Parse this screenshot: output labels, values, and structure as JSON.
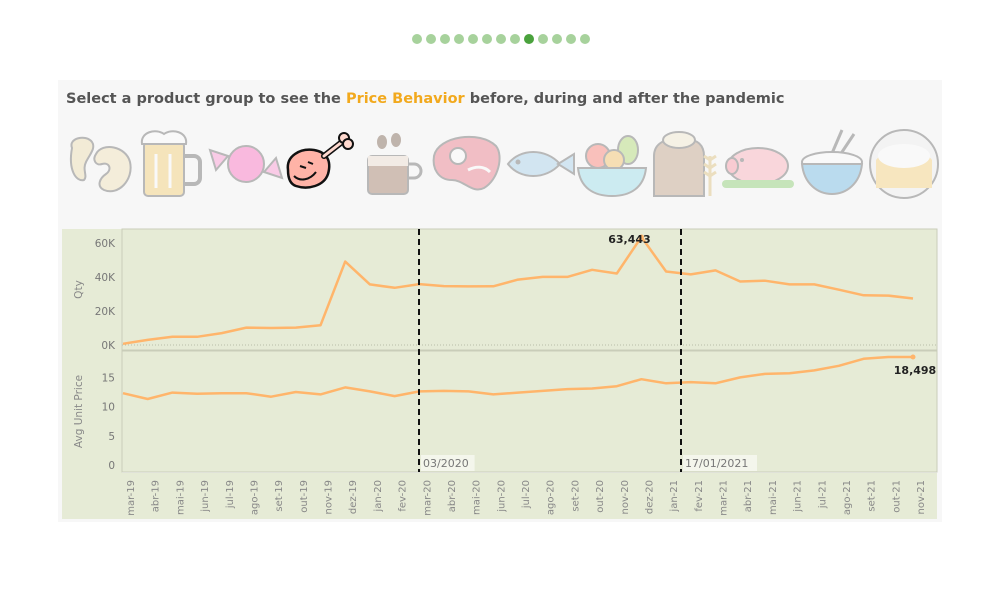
{
  "pager": {
    "count": 13,
    "active_index": 8
  },
  "header": {
    "prefix": "Select a product group to see the ",
    "highlight": "Price Behavior",
    "suffix": " before, during and after the pandemic"
  },
  "products": [
    {
      "name": "cashew-icon",
      "selected": false
    },
    {
      "name": "beer-mug-icon",
      "selected": false
    },
    {
      "name": "candy-icon",
      "selected": false
    },
    {
      "name": "chicken-leg-icon",
      "selected": true
    },
    {
      "name": "coffee-cup-icon",
      "selected": false
    },
    {
      "name": "steak-icon",
      "selected": false
    },
    {
      "name": "fish-icon",
      "selected": false
    },
    {
      "name": "fruit-bowl-icon",
      "selected": false
    },
    {
      "name": "grain-sack-icon",
      "selected": false
    },
    {
      "name": "roast-pig-icon",
      "selected": false
    },
    {
      "name": "rice-bowl-icon",
      "selected": false
    },
    {
      "name": "sugar-icon",
      "selected": false
    }
  ],
  "colors": {
    "line": "#ffb56b",
    "plot_bg": "#e6ebd6",
    "accent": "#f2a91d"
  },
  "chart_data": {
    "type": "line",
    "x": [
      "mar-19",
      "abr-19",
      "mai-19",
      "jun-19",
      "jul-19",
      "ago-19",
      "set-19",
      "out-19",
      "nov-19",
      "dez-19",
      "jan-20",
      "fev-20",
      "mar-20",
      "abr-20",
      "mai-20",
      "jun-20",
      "jul-20",
      "ago-20",
      "set-20",
      "out-20",
      "nov-20",
      "dez-20",
      "jan-21",
      "fev-21",
      "mar-21",
      "abr-21",
      "mai-21",
      "jun-21",
      "jul-21",
      "ago-21",
      "set-21",
      "out-21",
      "nov-21"
    ],
    "panels": [
      {
        "ylabel": "Qty",
        "yticks": [
          "0K",
          "20K",
          "40K",
          "60K"
        ],
        "ylim": [
          0,
          63443
        ],
        "values": [
          700,
          3000,
          4800,
          4800,
          7000,
          10200,
          10000,
          10200,
          11600,
          49000,
          35600,
          33600,
          35800,
          34600,
          34400,
          34500,
          38400,
          40000,
          40000,
          44200,
          42000,
          63443,
          43200,
          41500,
          43800,
          37300,
          37800,
          35600,
          35600,
          32500,
          29200,
          29000,
          27300
        ],
        "label": {
          "index": 21,
          "text": "63,443"
        }
      },
      {
        "ylabel": "Avg Unit Price",
        "yticks": [
          "0",
          "5",
          "10",
          "15"
        ],
        "ylim": [
          0,
          18.5
        ],
        "values": [
          12.3,
          11.3,
          12.4,
          12.2,
          12.3,
          12.3,
          11.7,
          12.5,
          12.1,
          13.3,
          12.6,
          11.8,
          12.6,
          12.7,
          12.6,
          12.1,
          12.4,
          12.7,
          13.0,
          13.1,
          13.5,
          14.7,
          14.0,
          14.2,
          14.0,
          15.0,
          15.6,
          15.7,
          16.2,
          17.0,
          18.2,
          18.5,
          18.5
        ],
        "label": {
          "index": 32,
          "text": "18,498"
        }
      }
    ],
    "reference_lines": [
      {
        "at": "mar-20",
        "label": "03/2020"
      },
      {
        "at": "jan-21",
        "label": "17/01/2021"
      }
    ]
  }
}
